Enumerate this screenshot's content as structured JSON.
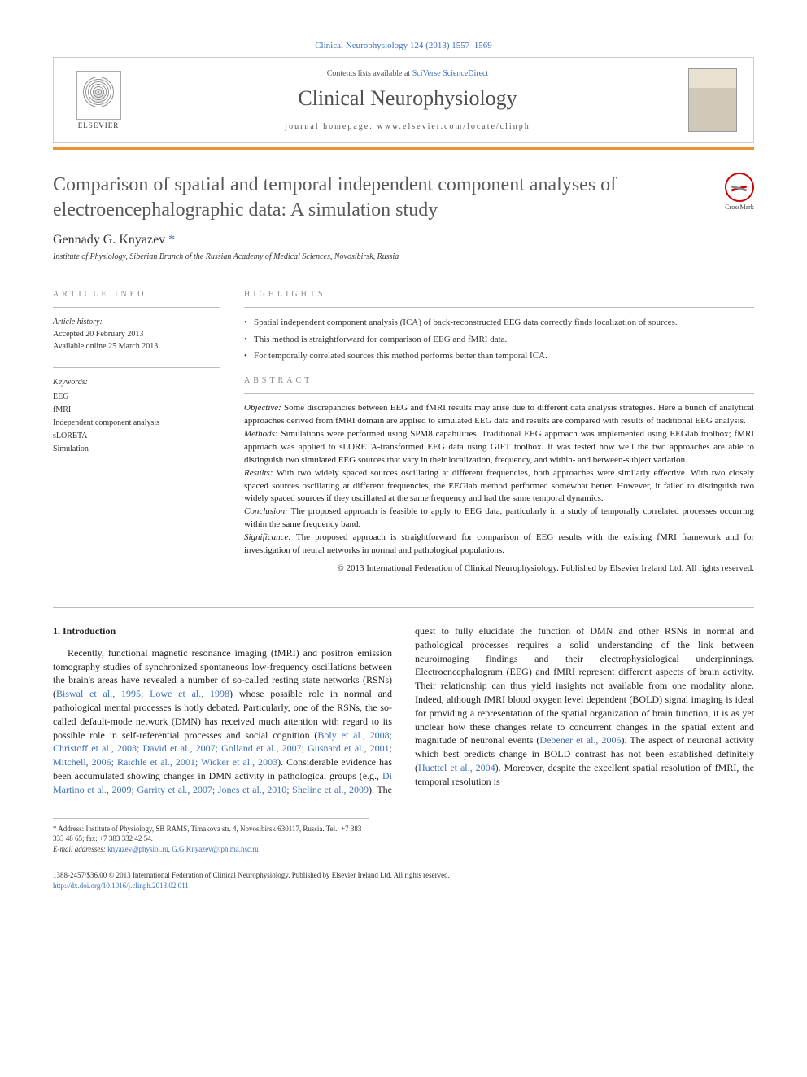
{
  "header": {
    "citation_link": "Clinical Neurophysiology 124 (2013) 1557–1569",
    "contents_prefix": "Contents lists available at ",
    "contents_link": "SciVerse ScienceDirect",
    "journal_name": "Clinical Neurophysiology",
    "homepage_prefix": "journal homepage: ",
    "homepage_url": "www.elsevier.com/locate/clinph",
    "elsevier_label": "ELSEVIER",
    "crossmark_label": "CrossMark"
  },
  "title": "Comparison of spatial and temporal independent component analyses of electroencephalographic data: A simulation study",
  "author": {
    "name": "Gennady G. Knyazev ",
    "marker": "*",
    "affiliation": "Institute of Physiology, Siberian Branch of the Russian Academy of Medical Sciences, Novosibirsk, Russia"
  },
  "article_info": {
    "label": "ARTICLE INFO",
    "history_label": "Article history:",
    "accepted": "Accepted 20 February 2013",
    "online": "Available online 25 March 2013",
    "keywords_label": "Keywords:",
    "keywords": [
      "EEG",
      "fMRI",
      "Independent component analysis",
      "sLORETA",
      "Simulation"
    ]
  },
  "highlights": {
    "label": "HIGHLIGHTS",
    "items": [
      "Spatial independent component analysis (ICA) of back-reconstructed EEG data correctly finds localization of sources.",
      "This method is straightforward for comparison of EEG and fMRI data.",
      "For temporally correlated sources this method performs better than temporal ICA."
    ]
  },
  "abstract": {
    "label": "ABSTRACT",
    "objective_label": "Objective:",
    "objective": " Some discrepancies between EEG and fMRI results may arise due to different data analysis strategies. Here a bunch of analytical approaches derived from fMRI domain are applied to simulated EEG data and results are compared with results of traditional EEG analysis.",
    "methods_label": "Methods:",
    "methods": " Simulations were performed using SPM8 capabilities. Traditional EEG approach was implemented using EEGlab toolbox; fMRI approach was applied to sLORETA-transformed EEG data using GIFT toolbox. It was tested how well the two approaches are able to distinguish two simulated EEG sources that vary in their localization, frequency, and within- and between-subject variation.",
    "results_label": "Results:",
    "results": " With two widely spaced sources oscillating at different frequencies, both approaches were similarly effective. With two closely spaced sources oscillating at different frequencies, the EEGlab method performed somewhat better. However, it failed to distinguish two widely spaced sources if they oscillated at the same frequency and had the same temporal dynamics.",
    "conclusion_label": "Conclusion:",
    "conclusion": " The proposed approach is feasible to apply to EEG data, particularly in a study of temporally correlated processes occurring within the same frequency band.",
    "significance_label": "Significance:",
    "significance": " The proposed approach is straightforward for comparison of EEG results with the existing fMRI framework and for investigation of neural networks in normal and pathological populations.",
    "copyright": "© 2013 International Federation of Clinical Neurophysiology. Published by Elsevier Ireland Ltd. All rights reserved."
  },
  "body": {
    "intro_heading": "1. Introduction",
    "p1a": "Recently, functional magnetic resonance imaging (fMRI) and positron emission tomography studies of synchronized spontaneous low-frequency oscillations between the brain's areas have revealed a number of so-called resting state networks (RSNs) (",
    "ref1": "Biswal et al., 1995; Lowe et al., 1998",
    "p1b": ") whose possible role in normal and pathological mental processes is hotly debated. Particularly, one of the RSNs, the so-called default-mode network (DMN) has received much attention with regard to its possible role in self-referential processes and social cognition (",
    "ref2": "Boly et al., 2008; Christoff et al., 2003; David et al., 2007; Golland et al., 2007; Gusnard et al., 2001; Mitchell, 2006; Raichle et al., 2001; Wicker",
    "p2a": "et al., 2003",
    "p2b": "). Considerable evidence has been accumulated showing changes in DMN activity in pathological groups (e.g., ",
    "ref3": "Di Martino et al., 2009; Garrity et al., 2007; Jones et al., 2010; Sheline et al., 2009",
    "p2c": "). The quest to fully elucidate the function of DMN and other RSNs in normal and pathological processes requires a solid understanding of the link between neuroimaging findings and their electrophysiological underpinnings. Electroencephalogram (EEG) and fMRI represent different aspects of brain activity. Their relationship can thus yield insights not available from one modality alone. Indeed, although fMRI blood oxygen level dependent (BOLD) signal imaging is ideal for providing a representation of the spatial organization of brain function, it is as yet unclear how these changes relate to concurrent changes in the spatial extent and magnitude of neuronal events (",
    "ref4": "Debener et al., 2006",
    "p2d": "). The aspect of neuronal activity which best predicts change in BOLD contrast has not been established definitely (",
    "ref5": "Huettel et al., 2004",
    "p2e": "). Moreover, despite the excellent spatial resolution of fMRI, the temporal resolution is"
  },
  "footnote": {
    "marker": "*",
    "address": " Address: Institute of Physiology, SB RAMS, Timakova str. 4, Novosibirsk 630117, Russia. Tel.: +7 383 333 48 65; fax: +7 383 332 42 54.",
    "email_label": "E-mail addresses: ",
    "email1": "knyazev@physiol.ru",
    "email_sep": ", ",
    "email2": "G.G.Knyazev@iph.ma.nsc.ru"
  },
  "footer": {
    "line1": "1388-2457/$36.00 © 2013 International Federation of Clinical Neurophysiology. Published by Elsevier Ireland Ltd. All rights reserved.",
    "doi": "http://dx.doi.org/10.1016/j.clinph.2013.02.011"
  },
  "colors": {
    "accent_orange": "#e8942f",
    "link_blue": "#3b6fb6",
    "title_gray": "#5a5a5a"
  }
}
